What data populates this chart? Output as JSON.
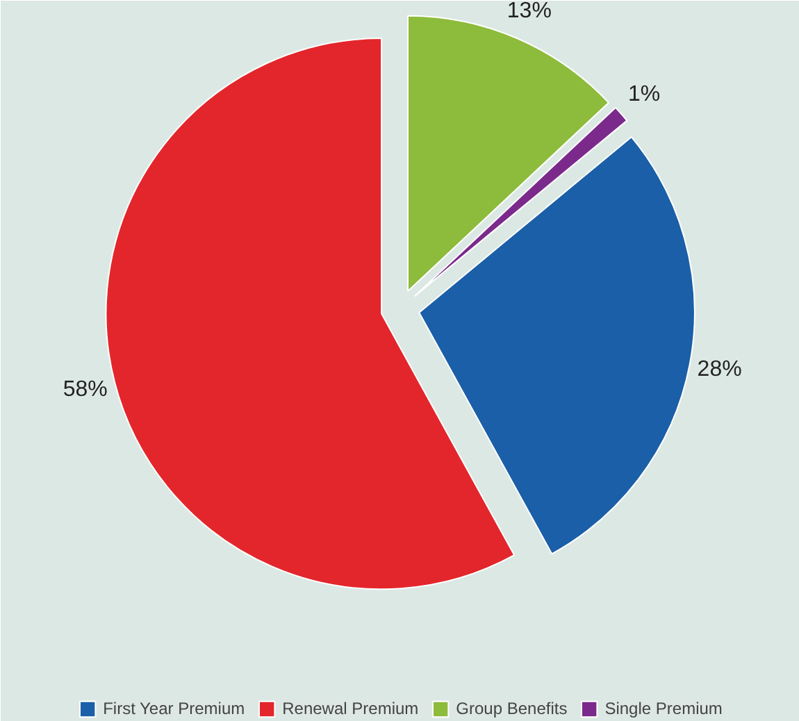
{
  "chart_data": {
    "type": "pie",
    "categories": [
      "First Year Premium",
      "Renewal Premium",
      "Group Benefits",
      "Single Premium"
    ],
    "values": [
      28,
      58,
      13,
      1
    ],
    "colors": [
      "#1a5fa8",
      "#e3262b",
      "#8dbb3c",
      "#7b2a8c"
    ],
    "value_labels": [
      "28%",
      "58%",
      "13%",
      "1%"
    ],
    "legend": "bottom"
  }
}
